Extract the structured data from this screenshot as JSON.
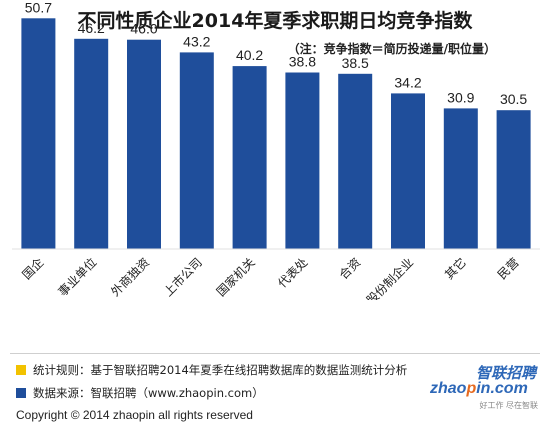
{
  "chart_data": {
    "type": "bar",
    "title": "不同性质企业2014年夏季求职期日均竞争指数",
    "subtitle": "（注：竞争指数＝简历投递量/职位量）",
    "categories": [
      "国企",
      "事业单位",
      "外商独资",
      "上市公司",
      "国家机关",
      "代表处",
      "合资",
      "股份制企业",
      "其它",
      "民营"
    ],
    "values": [
      50.7,
      46.2,
      46.0,
      43.2,
      40.2,
      38.8,
      38.5,
      34.2,
      30.9,
      30.5
    ],
    "value_labels": [
      "50.7",
      "46.2",
      "46.0",
      "43.2",
      "40.2",
      "38.8",
      "38.5",
      "34.2",
      "30.9",
      "30.5"
    ],
    "ylim": [
      0,
      55
    ],
    "grid": false,
    "bar_color": "#1f4e9b"
  },
  "legend": {
    "rule": {
      "text": "统计规则：基于智联招聘2014年夏季在线招聘数据库的数据监测统计分析",
      "color": "#f2c200"
    },
    "source": {
      "text": "数据来源：智联招聘（www.zhaopin.com）",
      "color": "#1f4e9b"
    }
  },
  "copyright": "Copyright   ©  2014  zhaopin all rights reserved",
  "watermark": {
    "brand": "智联招聘",
    "domain_a": "zhao",
    "domain_dot": "p",
    "domain_b": "in.com",
    "tagline": "好工作 尽在智联"
  }
}
